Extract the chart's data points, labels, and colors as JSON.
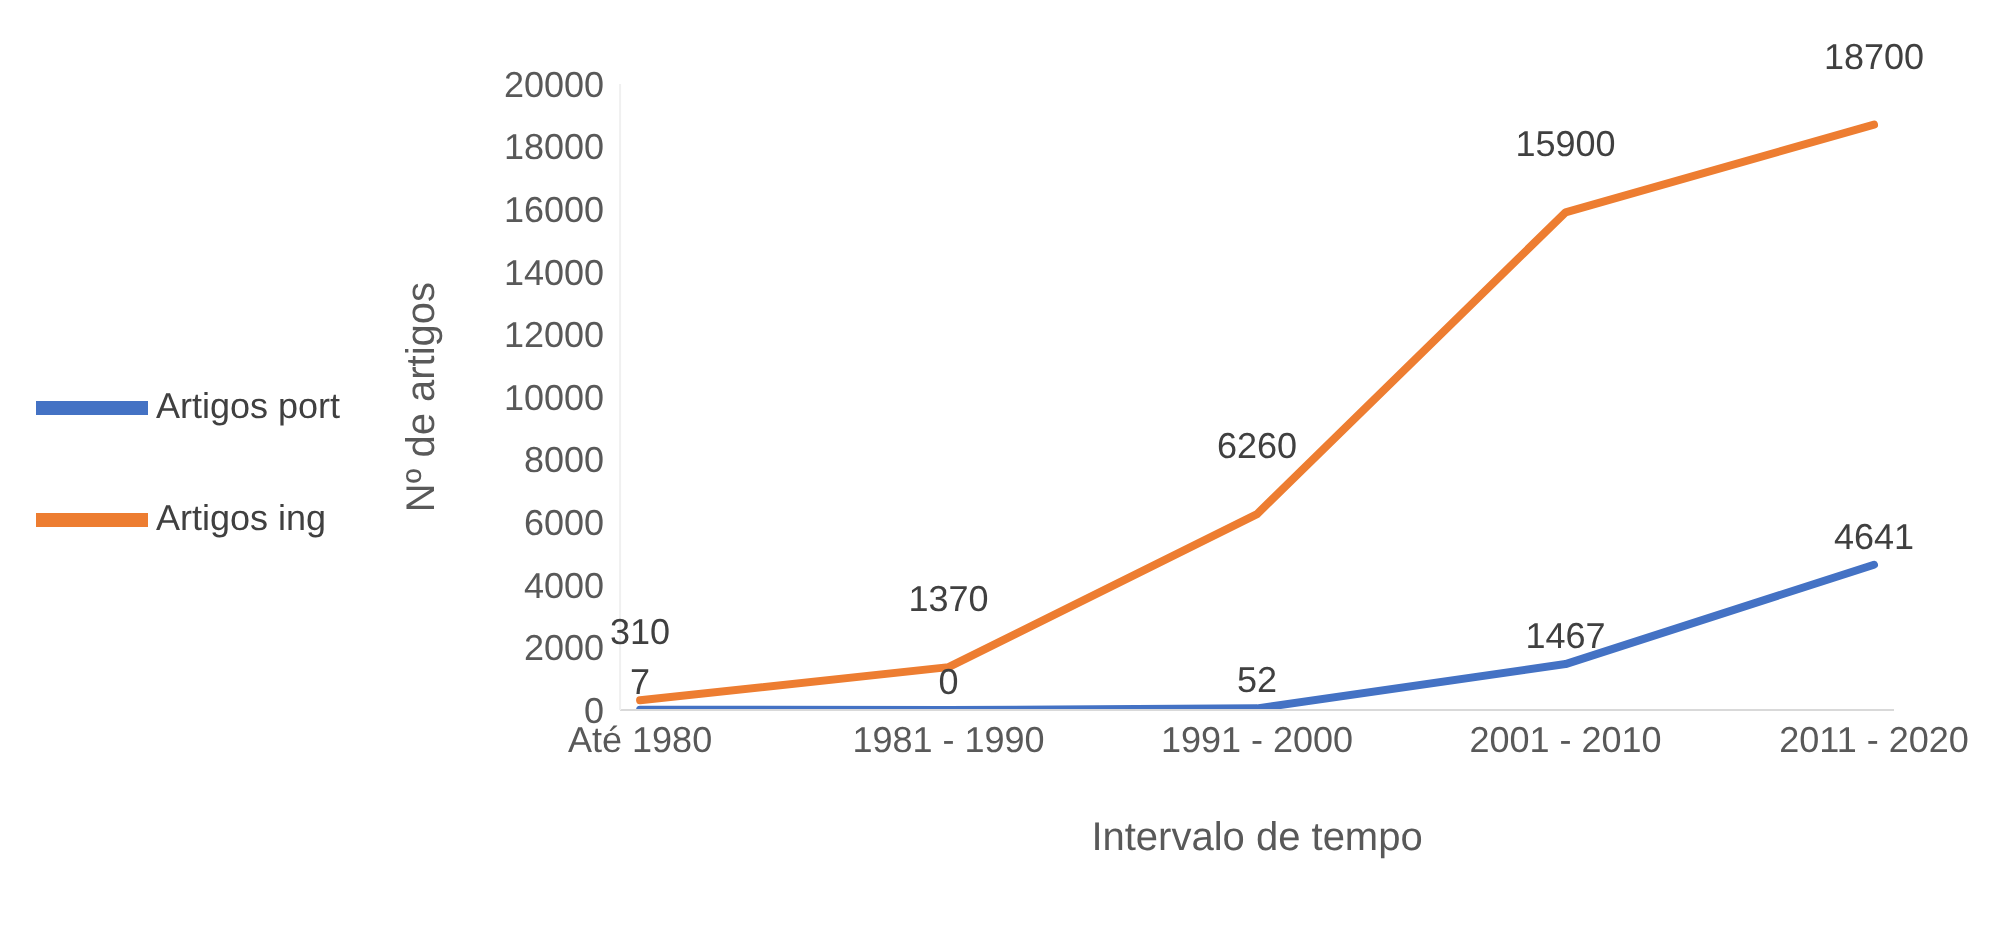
{
  "chart_data": {
    "type": "line",
    "xlabel": "Intervalo de tempo",
    "ylabel": "Nº de artigos",
    "categories": [
      "Até 1980",
      "1981 - 1990",
      "1991 - 2000",
      "2001 - 2010",
      "2011 - 2020"
    ],
    "series": [
      {
        "name": "Artigos port",
        "color": "#4472c4",
        "values": [
          7,
          0,
          52,
          1467,
          4641
        ]
      },
      {
        "name": "Artigos ing",
        "color": "#ed7d31",
        "values": [
          310,
          1370,
          6260,
          15900,
          18700
        ]
      }
    ],
    "ylim": [
      0,
      20000
    ],
    "yticks": [
      0,
      2000,
      4000,
      6000,
      8000,
      10000,
      12000,
      14000,
      16000,
      18000,
      20000
    ],
    "grid": false,
    "legend": "left",
    "data_labels": true,
    "marker": "none",
    "line_style": "solid"
  }
}
